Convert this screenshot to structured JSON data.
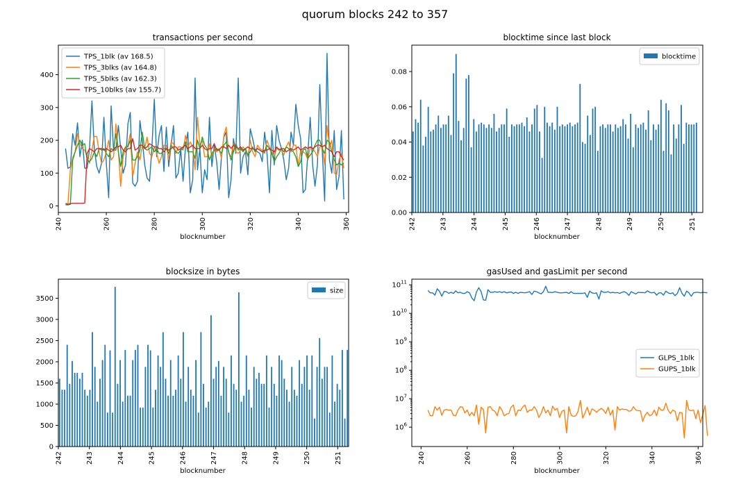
{
  "figure": {
    "title": "quorum blocks 242 to 357"
  },
  "chart_data": [
    {
      "id": "tps",
      "type": "line",
      "title": "transactions per second",
      "xlabel": "blocknumber",
      "ylabel": "",
      "xlim": [
        240,
        361
      ],
      "ylim": [
        -20,
        490
      ],
      "xticks": [
        240,
        260,
        280,
        300,
        320,
        340,
        360
      ],
      "yticks": [
        0,
        100,
        200,
        300,
        400
      ],
      "legend": "top-left",
      "x_start": 243,
      "series": [
        {
          "name": "TPS_1blk (av 168.5)",
          "color": "#1f77b4",
          "values": [
            175,
            115,
            118,
            220,
            185,
            253,
            150,
            200,
            115,
            115,
            175,
            320,
            175,
            120,
            100,
            130,
            270,
            130,
            25,
            305,
            170,
            170,
            245,
            175,
            100,
            125,
            250,
            285,
            70,
            60,
            75,
            260,
            200,
            125,
            85,
            75,
            175,
            325,
            150,
            215,
            245,
            105,
            240,
            120,
            185,
            245,
            85,
            100,
            175,
            75,
            180,
            225,
            40,
            80,
            390,
            110,
            175,
            40,
            110,
            80,
            270,
            120,
            185,
            135,
            50,
            150,
            210,
            225,
            25,
            80,
            205,
            160,
            390,
            100,
            150,
            165,
            95,
            235,
            205,
            170,
            165,
            160,
            135,
            225,
            160,
            40,
            230,
            125,
            245,
            200,
            175,
            140,
            80,
            115,
            225,
            185,
            310,
            245,
            205,
            40,
            50,
            160,
            270,
            125,
            60,
            125,
            370,
            170,
            15,
            465,
            140,
            100,
            230,
            50,
            90,
            230,
            20
          ]
        },
        {
          "name": "TPS_3blks (av 164.8)",
          "color": "#ff7f0e",
          "values": [
            5,
            5,
            110,
            148,
            165,
            220,
            190,
            175,
            170,
            150,
            130,
            170,
            212,
            212,
            165,
            130,
            140,
            165,
            200,
            140,
            150,
            250,
            170,
            60,
            150,
            175,
            185,
            220,
            90,
            130,
            165,
            140,
            185,
            175,
            210,
            160,
            150,
            180,
            160,
            130,
            150,
            185,
            185,
            140,
            195,
            190,
            160,
            180,
            180,
            170,
            215,
            180,
            195,
            180,
            110,
            270,
            185,
            200,
            150,
            150,
            190,
            150,
            175,
            165,
            175,
            145,
            215,
            240,
            160,
            150,
            190,
            165,
            160,
            170,
            180,
            170,
            150,
            200,
            165,
            150,
            185,
            175,
            170,
            160,
            200,
            180,
            165,
            150,
            175,
            175,
            170,
            155,
            180,
            195,
            165,
            185,
            185,
            120,
            170,
            165,
            160,
            140,
            180,
            175,
            165,
            150,
            180,
            185,
            125,
            245,
            180,
            200,
            100,
            95,
            140,
            160,
            115
          ]
        },
        {
          "name": "TPS_5blks (av 162.3)",
          "color": "#2ca02c",
          "values": [
            3,
            3,
            5,
            140,
            165,
            185,
            200,
            185,
            190,
            140,
            135,
            145,
            165,
            150,
            175,
            170,
            175,
            160,
            150,
            175,
            170,
            220,
            165,
            120,
            165,
            180,
            180,
            200,
            140,
            140,
            150,
            170,
            225,
            175,
            170,
            175,
            180,
            165,
            175,
            160,
            160,
            175,
            175,
            160,
            185,
            175,
            165,
            160,
            170,
            175,
            195,
            165,
            165,
            165,
            145,
            200,
            175,
            210,
            185,
            175,
            140,
            160,
            170,
            175,
            170,
            160,
            185,
            195,
            165,
            140,
            165,
            190,
            170,
            175,
            165,
            175,
            155,
            165,
            180,
            165,
            175,
            170,
            165,
            165,
            185,
            175,
            160,
            135,
            150,
            160,
            175,
            165,
            180,
            175,
            170,
            165,
            150,
            120,
            135,
            170,
            175,
            145,
            155,
            165,
            185,
            200,
            200,
            175,
            160,
            200,
            195,
            165,
            140,
            125,
            130,
            125,
            130
          ]
        },
        {
          "name": "TPS_10blks (av 155.7)",
          "color": "#d62728",
          "values": [
            8,
            5,
            7,
            8,
            8,
            8,
            8,
            8,
            9,
            160,
            175,
            170,
            165,
            175,
            175,
            175,
            170,
            175,
            170,
            165,
            170,
            180,
            180,
            185,
            170,
            165,
            175,
            175,
            205,
            170,
            175,
            185,
            185,
            175,
            180,
            190,
            185,
            180,
            180,
            175,
            175,
            165,
            175,
            170,
            175,
            180,
            180,
            170,
            175,
            180,
            185,
            175,
            180,
            185,
            175,
            175,
            175,
            185,
            175,
            170,
            175,
            175,
            190,
            170,
            170,
            180,
            180,
            175,
            185,
            175,
            185,
            180,
            175,
            180,
            170,
            175,
            180,
            175,
            175,
            170,
            175,
            170,
            165,
            170,
            170,
            175,
            170,
            165,
            180,
            170,
            175,
            175,
            165,
            170,
            175,
            170,
            175,
            180,
            170,
            175,
            180,
            175,
            180,
            175,
            180,
            185,
            185,
            180,
            185,
            175,
            170,
            165,
            150,
            165,
            165,
            150,
            140
          ]
        }
      ]
    },
    {
      "id": "blocktime",
      "type": "bar",
      "title": "blocktime since last block",
      "xlabel": "blocknumber",
      "ylabel": "",
      "xlim": [
        0,
        115
      ],
      "ylim": [
        0,
        0.095
      ],
      "xtick_labels": [
        "242",
        "243",
        "244",
        "245",
        "246",
        "247",
        "248",
        "249",
        "250",
        "251"
      ],
      "yticks": [
        0.0,
        0.02,
        0.04,
        0.06,
        0.08
      ],
      "ytick_labels": [
        "0.00",
        "0.02",
        "0.04",
        "0.06",
        "0.08"
      ],
      "legend": "top-right",
      "series": [
        {
          "name": "blocktime",
          "color": "#1f77b4",
          "values": [
            0.046,
            0.053,
            0.051,
            0.064,
            0.038,
            0.043,
            0.06,
            0.046,
            0.047,
            0.05,
            0.055,
            0.048,
            0.05,
            0.05,
            0.055,
            0.044,
            0.079,
            0.09,
            0.052,
            0.041,
            0.048,
            0.076,
            0.078,
            0.037,
            0.053,
            0.046,
            0.05,
            0.051,
            0.05,
            0.048,
            0.05,
            0.048,
            0.056,
            0.046,
            0.048,
            0.05,
            0.05,
            0.059,
            0.043,
            0.05,
            0.049,
            0.05,
            0.05,
            0.051,
            0.049,
            0.054,
            0.046,
            0.05,
            0.059,
            0.061,
            0.046,
            0.031,
            0.06,
            0.051,
            0.049,
            0.051,
            0.047,
            0.06,
            0.049,
            0.05,
            0.049,
            0.05,
            0.051,
            0.049,
            0.05,
            0.051,
            0.073,
            0.04,
            0.039,
            0.055,
            0.044,
            0.059,
            0.06,
            0.035,
            0.049,
            0.05,
            0.048,
            0.05,
            0.05,
            0.046,
            0.05,
            0.048,
            0.049,
            0.053,
            0.05,
            0.042,
            0.056,
            0.037,
            0.05,
            0.048,
            0.05,
            0.051,
            0.047,
            0.058,
            0.041,
            0.05,
            0.047,
            0.05,
            0.064,
            0.035,
            0.062,
            0.058,
            0.033,
            0.05,
            0.042,
            0.05,
            0.061,
            0.039,
            0.051,
            0.05,
            0.05,
            0.05,
            0.051
          ]
        }
      ]
    },
    {
      "id": "blocksize",
      "type": "bar",
      "title": "blocksize in bytes",
      "xlabel": "blocknumber",
      "ylabel": "",
      "xlim": [
        0,
        115
      ],
      "ylim": [
        0,
        3950
      ],
      "xtick_labels": [
        "242",
        "243",
        "244",
        "245",
        "246",
        "247",
        "248",
        "249",
        "250",
        "251"
      ],
      "yticks": [
        0,
        500,
        1000,
        1500,
        2000,
        2500,
        3000,
        3500
      ],
      "legend": "top-right",
      "series": [
        {
          "name": "size",
          "color": "#1f77b4",
          "values": [
            1600,
            1340,
            1340,
            2400,
            1480,
            2020,
            1740,
            1740,
            1600,
            1740,
            1340,
            1200,
            1340,
            2700,
            1880,
            1060,
            1600,
            2040,
            2400,
            800,
            2270,
            800,
            3770,
            1480,
            2040,
            1060,
            2280,
            1200,
            1200,
            2040,
            2280,
            2400,
            920,
            920,
            1880,
            2400,
            2270,
            920,
            1340,
            2150,
            1880,
            2700,
            1600,
            1200,
            2040,
            1200,
            1340,
            2150,
            1600,
            2700,
            1060,
            1880,
            1340,
            1200,
            2040,
            800,
            2700,
            1480,
            920,
            1060,
            3100,
            1600,
            1880,
            2020,
            1200,
            1880,
            1600,
            800,
            2150,
            1480,
            1340,
            3640,
            1060,
            1200,
            2150,
            1340,
            920,
            1880,
            1600,
            1740,
            1480,
            1480,
            2150,
            920,
            1880,
            1480,
            1200,
            2150,
            2040,
            1600,
            1340,
            1060,
            1880,
            1340,
            1200,
            2040,
            1480,
            1880,
            2150,
            1340,
            2150,
            660,
            1880,
            2560,
            1600,
            1880,
            1880,
            800,
            2150,
            1060,
            1480,
            1340,
            2280,
            660,
            2280
          ]
        }
      ]
    },
    {
      "id": "gas",
      "type": "line",
      "title": "gasUsed and gasLimit per second",
      "xlabel": "blocknumber",
      "ylabel": "",
      "yscale": "log",
      "xlim": [
        236,
        362
      ],
      "ylim_log10": [
        5.32,
        11.2
      ],
      "xticks": [
        240,
        260,
        280,
        300,
        320,
        340,
        360
      ],
      "yticks_log10": [
        6,
        7,
        8,
        9,
        10,
        11
      ],
      "legend": "center-right",
      "x_start": 243,
      "series": [
        {
          "name": "GLPS_1blk",
          "color": "#1f77b4",
          "values_log10": [
            10.8,
            10.72,
            10.72,
            10.64,
            10.86,
            10.77,
            10.6,
            10.77,
            10.76,
            10.7,
            10.74,
            10.7,
            10.79,
            10.72,
            10.74,
            10.7,
            10.7,
            10.76,
            10.72,
            10.54,
            10.44,
            10.75,
            10.9,
            10.76,
            10.47,
            10.46,
            10.83,
            10.74,
            10.74,
            10.76,
            10.74,
            10.76,
            10.73,
            10.76,
            10.72,
            10.74,
            10.75,
            10.7,
            10.74,
            10.7,
            10.74,
            10.73,
            10.72,
            10.74,
            10.76,
            10.66,
            10.78,
            10.76,
            10.72,
            10.68,
            10.76,
            10.95,
            10.74,
            10.74,
            10.73,
            10.76,
            10.74,
            10.72,
            10.72,
            10.73,
            10.74,
            10.7,
            10.76,
            10.7,
            10.7,
            10.7,
            10.7,
            10.7,
            10.72,
            10.56,
            10.78,
            10.72,
            10.7,
            10.72,
            10.5,
            10.79,
            10.74,
            10.74,
            10.76,
            10.72,
            10.74,
            10.72,
            10.73,
            10.7,
            10.74,
            10.76,
            10.72,
            10.63,
            10.76,
            10.72,
            10.68,
            10.74,
            10.73,
            10.73,
            10.72,
            10.79,
            10.74,
            10.72,
            10.74,
            10.64,
            10.72,
            10.72,
            10.64,
            10.78,
            10.72,
            10.69,
            10.72,
            10.62,
            10.7,
            10.9,
            10.7,
            10.6,
            10.78,
            10.72,
            10.6,
            10.72,
            10.74,
            10.74,
            10.72,
            10.74,
            10.73,
            10.72
          ]
        },
        {
          "name": "GUPS_1blk",
          "color": "#ff7f0e",
          "values_log10": [
            6.6,
            6.4,
            6.4,
            6.72,
            6.6,
            6.7,
            6.42,
            6.6,
            6.62,
            6.6,
            6.6,
            6.42,
            6.4,
            6.6,
            6.72,
            6.7,
            6.5,
            6.6,
            6.4,
            6.52,
            6.4,
            6.78,
            6.1,
            6.7,
            6.62,
            5.8,
            6.7,
            6.72,
            6.6,
            6.56,
            6.4,
            6.72,
            6.6,
            6.4,
            6.46,
            6.48,
            6.7,
            6.78,
            6.4,
            6.6,
            6.58,
            6.7,
            6.78,
            6.52,
            6.6,
            6.6,
            6.72,
            6.6,
            6.34,
            6.48,
            6.72,
            6.5,
            6.6,
            6.4,
            6.74,
            6.6,
            6.66,
            6.34,
            6.56,
            6.6,
            5.8,
            6.72,
            6.42,
            6.38,
            6.4,
            6.56,
            6.94,
            6.32,
            6.5,
            6.7,
            6.42,
            6.64,
            6.6,
            6.52,
            6.6,
            6.66,
            6.6,
            6.48,
            6.7,
            6.42,
            6.6,
            5.9,
            6.72,
            6.6,
            6.64,
            6.62,
            6.62,
            6.56,
            6.58,
            6.72,
            6.6,
            6.58,
            6.58,
            6.2,
            6.42,
            6.52,
            6.4,
            6.44,
            6.6,
            6.4,
            6.7,
            6.6,
            6.6,
            6.84,
            6.6,
            6.48,
            6.6,
            6.56,
            6.22,
            6.52,
            6.5,
            5.62,
            6.94,
            6.6,
            6.58,
            6.6,
            6.3,
            6.6,
            6.16,
            6.44,
            6.76,
            5.7
          ]
        }
      ]
    }
  ]
}
